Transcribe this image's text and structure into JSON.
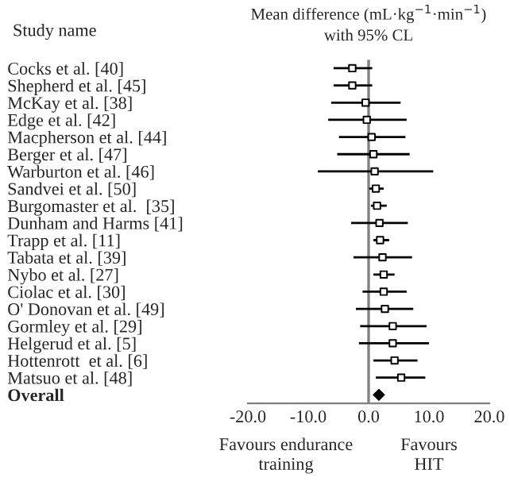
{
  "chart_data": {
    "type": "scatter",
    "orientation": "horizontal",
    "title": "Mean difference (mL·kg$^{−1}$·min$^{−1}$)\nwith 95% CL",
    "categories": [
      "Cocks et al. [40]",
      "Shepherd et al. [45]",
      "McKay et al. [38]",
      "Edge et al. [42]",
      "Macpherson et al. [44]",
      "Berger et al. [47]",
      "Warburton et al. [46]",
      "Sandvei et al. [50]",
      "Burgomaster et al.  [35]",
      "Dunham and Harms [41]",
      "Trapp et al. [11]",
      "Tabata et al. [39]",
      "Nybo et al. [27]",
      "Ciolac et al. [30]",
      "O' Donovan et al. [49]",
      "Gormley et al. [29]",
      "Helgerud et al. [5]",
      "Hottenrott  et al. [6]",
      "Matsuo et al. [48]",
      "Overall"
    ],
    "series": [
      {
        "color": "#000000",
        "marker": "square",
        "values": [
          -2.7,
          -2.7,
          -0.5,
          -0.3,
          0.5,
          0.8,
          1.0,
          1.2,
          1.4,
          1.8,
          1.9,
          2.3,
          2.5,
          2.5,
          2.7,
          4.0,
          4.0,
          4.3,
          5.4,
          null
        ],
        "errors": [
          [
            -5.8,
            0.6
          ],
          [
            -5.8,
            0.6
          ],
          [
            -6.2,
            5.3
          ],
          [
            -6.7,
            6.3
          ],
          [
            -4.9,
            6.1
          ],
          [
            -5.2,
            6.8
          ],
          [
            -8.4,
            10.7
          ],
          [
            0.1,
            2.5
          ],
          [
            0.4,
            3.0
          ],
          [
            -2.9,
            6.5
          ],
          [
            0.8,
            3.4
          ],
          [
            -2.5,
            7.2
          ],
          [
            0.8,
            4.3
          ],
          [
            -1.0,
            6.3
          ],
          [
            -2.1,
            7.4
          ],
          [
            -1.4,
            9.6
          ],
          [
            -1.6,
            10.0
          ],
          [
            0.8,
            8.1
          ],
          [
            1.2,
            9.4
          ],
          null
        ]
      },
      {
        "color": "#000000",
        "marker": "diamond",
        "values": [
          null,
          null,
          null,
          null,
          null,
          null,
          null,
          null,
          null,
          null,
          null,
          null,
          null,
          null,
          null,
          null,
          null,
          null,
          null,
          1.7
        ]
      }
    ],
    "xlim": [
      -20,
      20
    ],
    "xticks": [
      {
        "value": -20,
        "label": "-20.0"
      },
      {
        "value": -10,
        "label": "-10.0"
      },
      {
        "value": 0,
        "label": "0.0"
      },
      {
        "value": 10,
        "label": "10.0"
      },
      {
        "value": 20,
        "label": "20.0"
      }
    ],
    "ref_lines": [
      {
        "axis": "x",
        "value": 0,
        "color": "#808080"
      }
    ],
    "annotations": [
      "Study name",
      "Favours endurance\ntraining",
      "Favours\nHIT"
    ],
    "grid": false
  }
}
